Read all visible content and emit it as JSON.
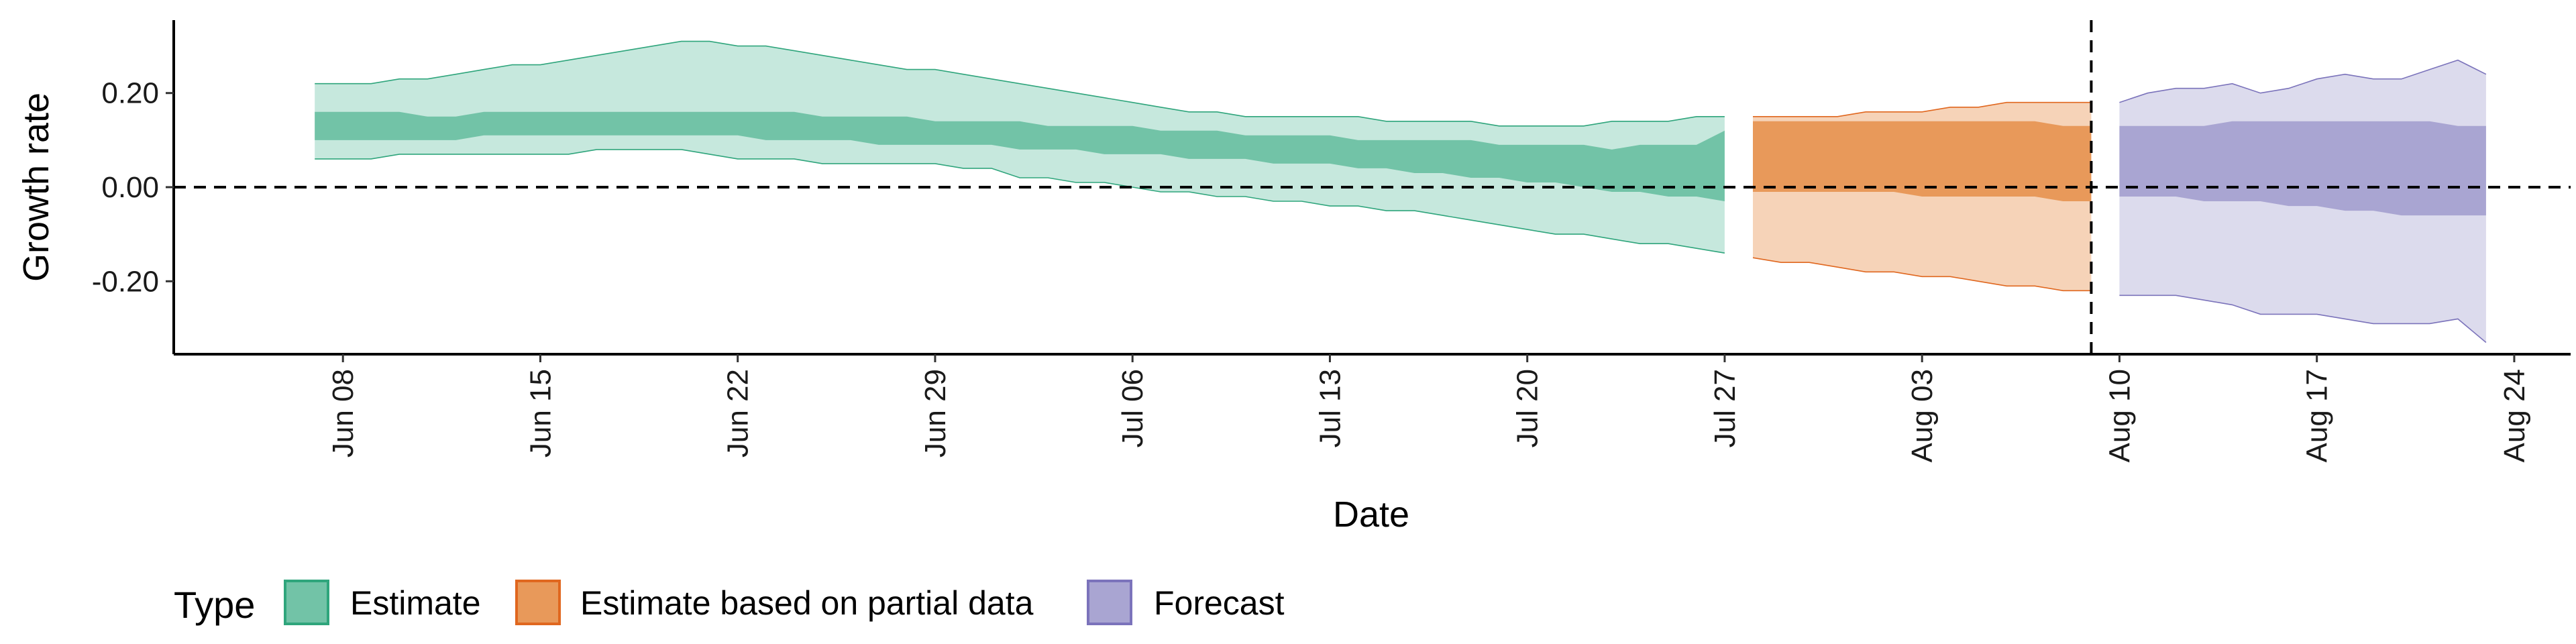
{
  "chart_data": {
    "type": "area",
    "xlabel": "Date",
    "ylabel": "Growth rate",
    "ylim": [
      -0.355,
      0.355
    ],
    "xlim": [
      "2020-06-02",
      "2020-08-26"
    ],
    "y_ticks": [
      {
        "value": -0.2,
        "label": "-0.20"
      },
      {
        "value": 0.0,
        "label": "0.00"
      },
      {
        "value": 0.2,
        "label": "0.20"
      }
    ],
    "x_ticks": [
      {
        "date": "2020-06-08",
        "label": "Jun 08"
      },
      {
        "date": "2020-06-15",
        "label": "Jun 15"
      },
      {
        "date": "2020-06-22",
        "label": "Jun 22"
      },
      {
        "date": "2020-06-29",
        "label": "Jun 29"
      },
      {
        "date": "2020-07-06",
        "label": "Jul 06"
      },
      {
        "date": "2020-07-13",
        "label": "Jul 13"
      },
      {
        "date": "2020-07-20",
        "label": "Jul 20"
      },
      {
        "date": "2020-07-27",
        "label": "Jul 27"
      },
      {
        "date": "2020-08-03",
        "label": "Aug 03"
      },
      {
        "date": "2020-08-10",
        "label": "Aug 10"
      },
      {
        "date": "2020-08-17",
        "label": "Aug 17"
      },
      {
        "date": "2020-08-24",
        "label": "Aug 24"
      }
    ],
    "reference_lines": {
      "horizontal_y": 0.0,
      "vertical_date": "2020-08-09"
    },
    "legend": {
      "title": "Type",
      "position": "bottom"
    },
    "series": [
      {
        "name": "Estimate",
        "fill_color": "#66c2a5",
        "inner_color": "#72c3a7",
        "outer_color": "#c6e8dd",
        "line_color": "#2fa57c",
        "dates": [
          "2020-06-07",
          "2020-06-08",
          "2020-06-09",
          "2020-06-10",
          "2020-06-11",
          "2020-06-12",
          "2020-06-13",
          "2020-06-14",
          "2020-06-15",
          "2020-06-16",
          "2020-06-17",
          "2020-06-18",
          "2020-06-19",
          "2020-06-20",
          "2020-06-21",
          "2020-06-22",
          "2020-06-23",
          "2020-06-24",
          "2020-06-25",
          "2020-06-26",
          "2020-06-27",
          "2020-06-28",
          "2020-06-29",
          "2020-06-30",
          "2020-07-01",
          "2020-07-02",
          "2020-07-03",
          "2020-07-04",
          "2020-07-05",
          "2020-07-06",
          "2020-07-07",
          "2020-07-08",
          "2020-07-09",
          "2020-07-10",
          "2020-07-11",
          "2020-07-12",
          "2020-07-13",
          "2020-07-14",
          "2020-07-15",
          "2020-07-16",
          "2020-07-17",
          "2020-07-18",
          "2020-07-19",
          "2020-07-20",
          "2020-07-21",
          "2020-07-22",
          "2020-07-23",
          "2020-07-24",
          "2020-07-25",
          "2020-07-26",
          "2020-07-27"
        ],
        "outer_upper": [
          0.22,
          0.22,
          0.22,
          0.23,
          0.23,
          0.24,
          0.25,
          0.26,
          0.26,
          0.27,
          0.28,
          0.29,
          0.3,
          0.31,
          0.31,
          0.3,
          0.3,
          0.29,
          0.28,
          0.27,
          0.26,
          0.25,
          0.25,
          0.24,
          0.23,
          0.22,
          0.21,
          0.2,
          0.19,
          0.18,
          0.17,
          0.16,
          0.16,
          0.15,
          0.15,
          0.15,
          0.15,
          0.15,
          0.14,
          0.14,
          0.14,
          0.14,
          0.13,
          0.13,
          0.13,
          0.13,
          0.14,
          0.14,
          0.14,
          0.15,
          0.15
        ],
        "inner_upper": [
          0.16,
          0.16,
          0.16,
          0.16,
          0.15,
          0.15,
          0.16,
          0.16,
          0.16,
          0.16,
          0.16,
          0.16,
          0.16,
          0.16,
          0.16,
          0.16,
          0.16,
          0.16,
          0.15,
          0.15,
          0.15,
          0.15,
          0.14,
          0.14,
          0.14,
          0.14,
          0.13,
          0.13,
          0.13,
          0.13,
          0.12,
          0.12,
          0.12,
          0.11,
          0.11,
          0.11,
          0.11,
          0.1,
          0.1,
          0.1,
          0.1,
          0.1,
          0.09,
          0.09,
          0.09,
          0.09,
          0.08,
          0.09,
          0.09,
          0.09,
          0.12
        ],
        "inner_lower": [
          0.1,
          0.1,
          0.1,
          0.1,
          0.1,
          0.1,
          0.11,
          0.11,
          0.11,
          0.11,
          0.11,
          0.11,
          0.11,
          0.11,
          0.11,
          0.11,
          0.1,
          0.1,
          0.1,
          0.1,
          0.09,
          0.09,
          0.09,
          0.09,
          0.09,
          0.08,
          0.08,
          0.08,
          0.07,
          0.07,
          0.07,
          0.06,
          0.06,
          0.06,
          0.05,
          0.05,
          0.05,
          0.04,
          0.04,
          0.03,
          0.03,
          0.02,
          0.02,
          0.01,
          0.01,
          0.0,
          -0.01,
          -0.01,
          -0.02,
          -0.02,
          -0.03
        ],
        "outer_lower": [
          0.06,
          0.06,
          0.06,
          0.07,
          0.07,
          0.07,
          0.07,
          0.07,
          0.07,
          0.07,
          0.08,
          0.08,
          0.08,
          0.08,
          0.07,
          0.06,
          0.06,
          0.06,
          0.05,
          0.05,
          0.05,
          0.05,
          0.05,
          0.04,
          0.04,
          0.02,
          0.02,
          0.01,
          0.01,
          0.0,
          -0.01,
          -0.01,
          -0.02,
          -0.02,
          -0.03,
          -0.03,
          -0.04,
          -0.04,
          -0.05,
          -0.05,
          -0.06,
          -0.07,
          -0.08,
          -0.09,
          -0.1,
          -0.1,
          -0.11,
          -0.12,
          -0.12,
          -0.13,
          -0.14
        ]
      },
      {
        "name": "Estimate based on partial data",
        "fill_color": "#fc8d62",
        "inner_color": "#e8995a",
        "outer_color": "#f6d3b8",
        "line_color": "#e0671f",
        "dates": [
          "2020-07-28",
          "2020-07-29",
          "2020-07-30",
          "2020-07-31",
          "2020-08-01",
          "2020-08-02",
          "2020-08-03",
          "2020-08-04",
          "2020-08-05",
          "2020-08-06",
          "2020-08-07",
          "2020-08-08",
          "2020-08-09"
        ],
        "outer_upper": [
          0.15,
          0.15,
          0.15,
          0.15,
          0.16,
          0.16,
          0.16,
          0.17,
          0.17,
          0.18,
          0.18,
          0.18,
          0.18
        ],
        "inner_upper": [
          0.14,
          0.14,
          0.14,
          0.14,
          0.14,
          0.14,
          0.14,
          0.14,
          0.14,
          0.14,
          0.14,
          0.13,
          0.13
        ],
        "inner_lower": [
          -0.01,
          -0.01,
          -0.01,
          -0.01,
          -0.01,
          -0.01,
          -0.02,
          -0.02,
          -0.02,
          -0.02,
          -0.02,
          -0.03,
          -0.03
        ],
        "outer_lower": [
          -0.15,
          -0.16,
          -0.16,
          -0.17,
          -0.18,
          -0.18,
          -0.19,
          -0.19,
          -0.2,
          -0.21,
          -0.21,
          -0.22,
          -0.22
        ]
      },
      {
        "name": "Forecast",
        "fill_color": "#8da0cb",
        "inner_color": "#a9a5d2",
        "outer_color": "#dcdbed",
        "line_color": "#7b73bb",
        "dates": [
          "2020-08-10",
          "2020-08-11",
          "2020-08-12",
          "2020-08-13",
          "2020-08-14",
          "2020-08-15",
          "2020-08-16",
          "2020-08-17",
          "2020-08-18",
          "2020-08-19",
          "2020-08-20",
          "2020-08-21",
          "2020-08-22",
          "2020-08-23"
        ],
        "outer_upper": [
          0.18,
          0.2,
          0.21,
          0.21,
          0.22,
          0.2,
          0.21,
          0.23,
          0.24,
          0.23,
          0.23,
          0.25,
          0.27,
          0.24
        ],
        "inner_upper": [
          0.13,
          0.13,
          0.13,
          0.13,
          0.14,
          0.14,
          0.14,
          0.14,
          0.14,
          0.14,
          0.14,
          0.14,
          0.13,
          0.13
        ],
        "inner_lower": [
          -0.02,
          -0.02,
          -0.02,
          -0.03,
          -0.03,
          -0.03,
          -0.04,
          -0.04,
          -0.05,
          -0.05,
          -0.06,
          -0.06,
          -0.06,
          -0.06
        ],
        "outer_lower": [
          -0.23,
          -0.23,
          -0.23,
          -0.24,
          -0.25,
          -0.27,
          -0.27,
          -0.27,
          -0.28,
          -0.29,
          -0.29,
          -0.29,
          -0.28,
          -0.33
        ]
      }
    ]
  }
}
